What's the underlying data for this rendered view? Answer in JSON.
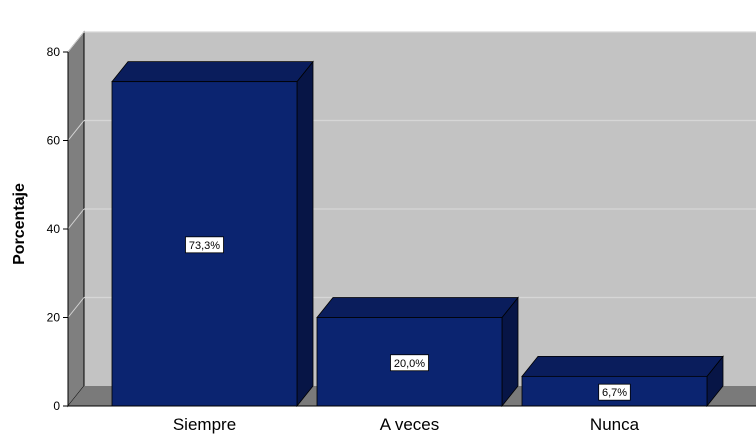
{
  "chart_data": {
    "type": "bar",
    "categories": [
      "Siempre",
      "A veces",
      "Nunca"
    ],
    "values": [
      73.3,
      20.0,
      6.7
    ],
    "data_labels": [
      "73,3%",
      "20,0%",
      "6,7%"
    ],
    "title": "",
    "xlabel": "",
    "ylabel": "Porcentaje",
    "ylim": [
      0,
      80
    ],
    "yticks": [
      0,
      20,
      40,
      60,
      80
    ],
    "grid": true,
    "style": "3d",
    "colors": {
      "bar_front": "#0b2470",
      "bar_top": "#0a1d5c",
      "bar_side": "#071546",
      "plot_back": "#c3c3c3",
      "plot_left_wall": "#7f7f7f",
      "plot_floor": "#7a7a7a",
      "gridline": "#d6d6d6"
    }
  }
}
